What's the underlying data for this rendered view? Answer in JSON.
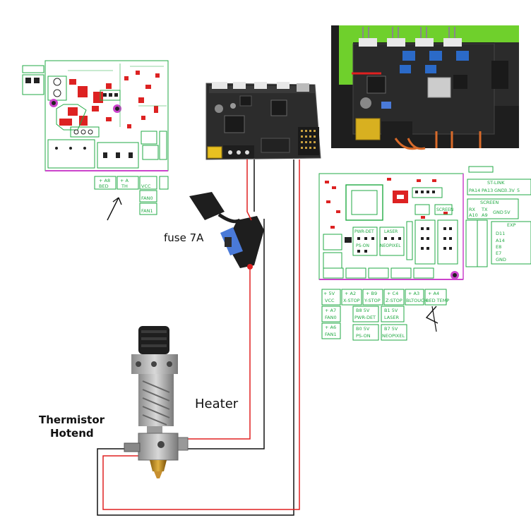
{
  "labels": {
    "fuse": "fuse 7A",
    "heater": "Heater",
    "thermistor_line1": "Thermistor",
    "thermistor_line2": "Hotend"
  },
  "left_pinout": {
    "cells": [
      [
        "+",
        "A8",
        "+",
        "A"
      ],
      [
        "BED",
        "",
        "TH",
        ""
      ],
      [
        "",
        "",
        "",
        ""
      ],
      [
        "+",
        "A9"
      ],
      [
        "FAN0"
      ],
      [
        "+",
        "A1"
      ],
      [
        "FAN1"
      ]
    ],
    "row1": [
      "+ A8",
      "+ A"
    ],
    "row1_sub": [
      "BED",
      "TH"
    ],
    "col2": [
      "VCC",
      "FAN0",
      "FAN1"
    ]
  },
  "right_pinout": {
    "top_header": [
      "ST-LINK"
    ],
    "st_link": [
      "PA14",
      "PA13",
      "GND",
      "3.3V",
      "5"
    ],
    "screen": "SCREEN",
    "screen_pins": [
      "RX",
      "TX",
      "GND",
      "5V"
    ],
    "screen_pins2": [
      "A10",
      "A9"
    ],
    "exp": "EXP",
    "exp_pins": [
      "D11",
      "A14",
      "E8",
      "E7",
      "GND"
    ],
    "board_labels": [
      "PWR-DET",
      "LASER",
      "PS-ON",
      "NEOPIXEL",
      "SCREEN"
    ],
    "row1": [
      "+",
      "5V",
      "+",
      "A2",
      "+",
      "B9",
      "+",
      "C4",
      "+",
      "A3",
      "+",
      "A4"
    ],
    "row1_sub": [
      "VCC",
      "X-STOP",
      "Y-STOP",
      "Z-STOP",
      "BLTOUCH",
      "BED TEMP"
    ],
    "fan0": [
      "+",
      "A7",
      "FAN0"
    ],
    "fan1": [
      "+",
      "A6",
      "FAN1"
    ],
    "pwr_det": [
      "B8",
      "5V",
      "PWR-DET"
    ],
    "laser": [
      "B1",
      "5V",
      "LASER"
    ],
    "ps_on": [
      "B0",
      "5V",
      "PS-ON"
    ],
    "neopixel": [
      "B7",
      "5V",
      "NEOPIXEL"
    ]
  },
  "colors": {
    "pcb_green": "#22aa44",
    "pcb_red": "#dd2222",
    "wire_red": "#e02020",
    "wire_black": "#111111",
    "board_black": "#2a2a2a",
    "photo_green": "#6fd02c",
    "fuse_yellow": "#e8c020",
    "fuse_blue": "#4a7ad8",
    "magenta": "#cc44cc"
  }
}
